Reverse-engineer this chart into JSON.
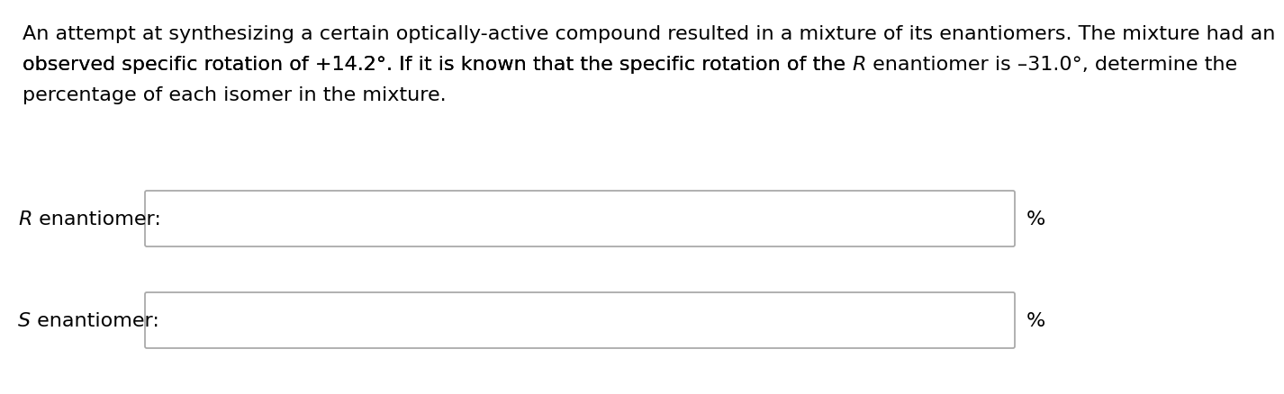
{
  "background_color": "#ffffff",
  "line1": "An attempt at synthesizing a certain optically-active compound resulted in a mixture of its enantiomers. The mixture had an",
  "line2_pre": "observed specific rotation of +14.2°. If it is known that the specific rotation of the ",
  "line2_R": "R",
  "line2_post": " enantiomer is –31.0°, determine the",
  "line3": "percentage of each isomer in the mixture.",
  "label_R_italic": "R",
  "label_R_normal": " enantiomer:",
  "label_S_italic": "S",
  "label_S_normal": " enantiomer:",
  "percent_symbol": "%",
  "text_color": "#000000",
  "box_edge_color": "#aaaaaa",
  "box_face_color": "#ffffff",
  "font_size_body": 16,
  "font_size_label": 16,
  "font_size_percent": 16
}
